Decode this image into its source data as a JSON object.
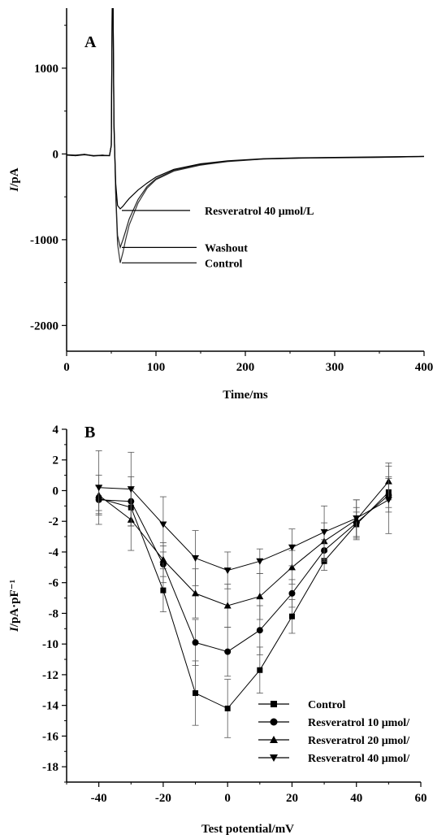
{
  "chart_data": [
    {
      "type": "line",
      "panel": "A",
      "xlabel": "Time/ms",
      "ylabel": "I/pA",
      "xlim": [
        0,
        400
      ],
      "ylim": [
        -2300,
        1700
      ],
      "xticks": [
        0,
        100,
        200,
        300,
        400
      ],
      "yticks": [
        -2000,
        -1000,
        0,
        1000
      ],
      "grid": false,
      "series": [
        {
          "name": "Control",
          "peak": -1270,
          "x": [
            0,
            10,
            20,
            30,
            40,
            48,
            50,
            51,
            52,
            53,
            55,
            57,
            60,
            63,
            66,
            70,
            80,
            90,
            100,
            120,
            150,
            180,
            220,
            260,
            300,
            350,
            400
          ],
          "y": [
            -10,
            -20,
            -5,
            -25,
            -15,
            -20,
            100,
            1700,
            1700,
            400,
            -500,
            -1050,
            -1270,
            -1150,
            -1000,
            -830,
            -570,
            -400,
            -300,
            -200,
            -130,
            -90,
            -60,
            -50,
            -45,
            -40,
            -30
          ]
        },
        {
          "name": "Washout",
          "peak": -1090,
          "x": [
            0,
            10,
            20,
            30,
            40,
            48,
            50,
            51,
            52,
            53,
            55,
            57,
            60,
            63,
            66,
            70,
            80,
            90,
            100,
            120,
            150,
            180,
            220,
            260,
            300,
            350,
            400
          ],
          "y": [
            -15,
            -20,
            -10,
            -20,
            -20,
            -20,
            100,
            1700,
            1700,
            350,
            -450,
            -950,
            -1090,
            -1000,
            -900,
            -760,
            -530,
            -380,
            -290,
            -190,
            -125,
            -85,
            -58,
            -48,
            -42,
            -38,
            -30
          ]
        },
        {
          "name": "Resveratrol 40 μmol/L",
          "peak": -640,
          "x": [
            0,
            10,
            20,
            30,
            40,
            48,
            50,
            51,
            52,
            53,
            55,
            57,
            60,
            63,
            66,
            70,
            80,
            90,
            100,
            120,
            150,
            180,
            220,
            260,
            300,
            350,
            400
          ],
          "y": [
            -10,
            -15,
            -5,
            -20,
            -15,
            -20,
            100,
            1700,
            1700,
            300,
            -350,
            -600,
            -640,
            -610,
            -570,
            -520,
            -420,
            -340,
            -270,
            -180,
            -115,
            -80,
            -55,
            -45,
            -40,
            -35,
            -28
          ]
        }
      ],
      "annotations": [
        "Resveratrol 40 μmol/L",
        "Washout",
        "Control"
      ]
    },
    {
      "type": "line",
      "panel": "B",
      "xlabel": "Test potential/mV",
      "ylabel": "I/pA·pF⁻¹",
      "xlim": [
        -50,
        60
      ],
      "ylim": [
        -19,
        4
      ],
      "xticks": [
        -40,
        -20,
        0,
        20,
        40,
        60
      ],
      "yticks": [
        4,
        2,
        0,
        -2,
        -4,
        -6,
        -8,
        -10,
        -12,
        -14,
        -16,
        -18
      ],
      "grid": false,
      "legend_position": "bottom-right",
      "x": [
        -40,
        -30,
        -20,
        -10,
        0,
        10,
        20,
        30,
        40,
        50
      ],
      "series": [
        {
          "name": "Control",
          "marker": "square",
          "values": [
            -0.5,
            -1.1,
            -6.5,
            -13.2,
            -14.2,
            -11.7,
            -8.2,
            -4.6,
            -2.2,
            -0.1
          ],
          "errors": [
            0.8,
            1.2,
            1.4,
            2.1,
            1.9,
            1.5,
            1.1,
            0.6,
            0.8,
            1.0
          ]
        },
        {
          "name": "Resveratrol 10 μmol/",
          "marker": "circle",
          "values": [
            -0.6,
            -0.7,
            -4.8,
            -9.9,
            -10.5,
            -9.1,
            -6.7,
            -3.9,
            -2.1,
            -0.3
          ],
          "errors": [
            0.9,
            1.6,
            1.2,
            1.5,
            1.6,
            1.6,
            0.9,
            0.7,
            1.0,
            1.1
          ]
        },
        {
          "name": "Resveratrol 20 μmol/",
          "marker": "triangle-up",
          "values": [
            -0.3,
            -1.9,
            -4.5,
            -6.7,
            -7.5,
            -6.9,
            -5.0,
            -3.3,
            -1.9,
            0.6
          ],
          "errors": [
            1.3,
            2.0,
            1.1,
            1.6,
            1.4,
            1.5,
            1.1,
            1.2,
            1.3,
            1.2
          ]
        },
        {
          "name": "Resveratrol 40 μmol/",
          "marker": "triangle-down",
          "values": [
            0.2,
            0.1,
            -2.2,
            -4.4,
            -5.2,
            -4.6,
            -3.7,
            -2.7,
            -1.8,
            -0.6
          ],
          "errors": [
            2.4,
            2.4,
            1.8,
            1.8,
            1.2,
            0.8,
            1.2,
            1.7,
            1.2,
            2.2
          ]
        }
      ]
    }
  ]
}
